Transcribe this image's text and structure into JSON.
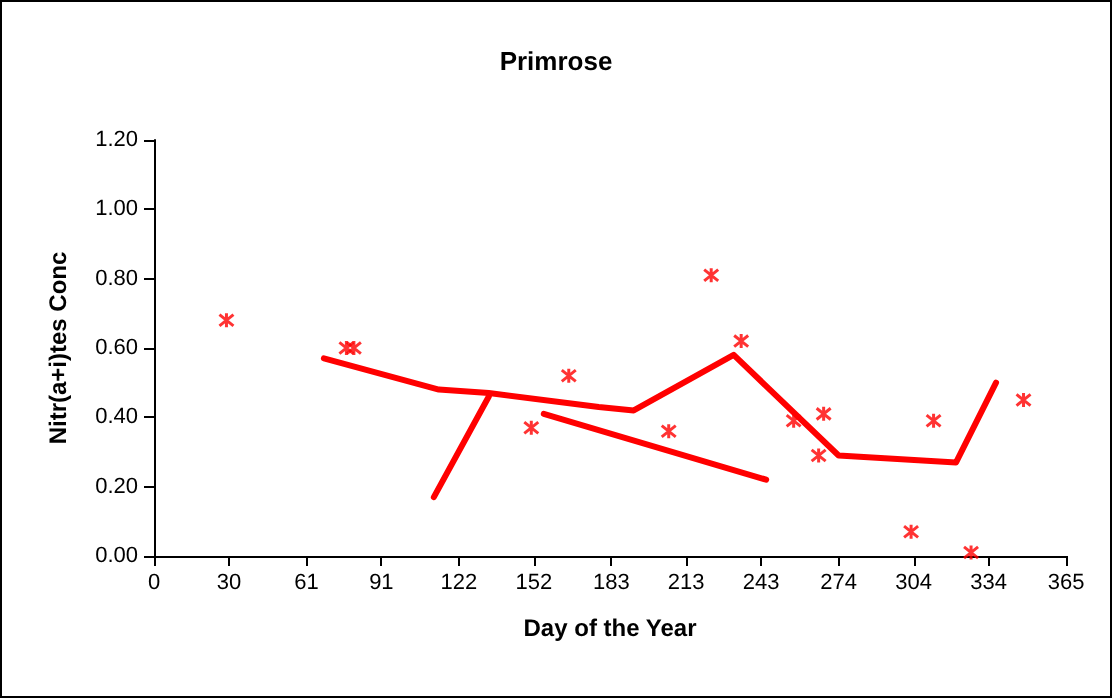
{
  "chart_data": {
    "type": "scatter",
    "title": "Primrose",
    "xlabel": "Day of the Year",
    "ylabel": "Nitr(a+i)tes Conc",
    "xlim": [
      0,
      365
    ],
    "xticks": [
      0,
      30,
      61,
      91,
      122,
      152,
      183,
      213,
      243,
      274,
      304,
      334,
      365
    ],
    "ylim": [
      0,
      1.2
    ],
    "yticks": [
      {
        "value": 0,
        "label": "0.00"
      },
      {
        "value": 0.2,
        "label": "0.20"
      },
      {
        "value": 0.4,
        "label": "0.40"
      },
      {
        "value": 0.6,
        "label": "0.60"
      },
      {
        "value": 0.8,
        "label": "0.80"
      },
      {
        "value": 1,
        "label": "1.00"
      },
      {
        "value": 1.2,
        "label": "1.20"
      }
    ],
    "grid": false,
    "series": [
      {
        "marker": "cross",
        "color": "#ff0000",
        "x": [
          29,
          77,
          80,
          151,
          166,
          206,
          223,
          235,
          256,
          266,
          268,
          303,
          312,
          327,
          348
        ],
        "values": [
          0.68,
          0.6,
          0.6,
          0.37,
          0.52,
          0.36,
          0.81,
          0.62,
          0.39,
          0.29,
          0.41,
          0.07,
          0.39,
          0.01,
          0.45
        ]
      },
      {
        "type": "line",
        "marker": "none",
        "line_style": "solid",
        "color": "#ff0000",
        "x": [
          68,
          114,
          134,
          178,
          192,
          232,
          274,
          321,
          337
        ],
        "values": [
          0.57,
          0.48,
          0.47,
          0.43,
          0.42,
          0.58,
          0.29,
          0.27,
          0.5
        ]
      },
      {
        "type": "line",
        "marker": "none",
        "line_style": "solid",
        "color": "#ff0000",
        "x": [
          112,
          134
        ],
        "values": [
          0.17,
          0.46
        ]
      },
      {
        "type": "line",
        "marker": "none",
        "line_style": "solid",
        "color": "#ff0000",
        "x": [
          156,
          245
        ],
        "values": [
          0.41,
          0.22
        ]
      }
    ]
  }
}
